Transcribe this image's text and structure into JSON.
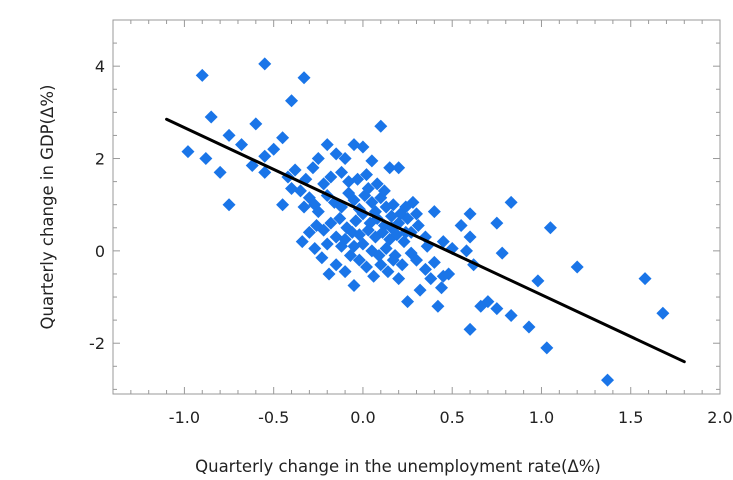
{
  "chart_data": {
    "type": "scatter",
    "xlabel": "Quarterly change in the unemployment rate(Δ%)",
    "ylabel": "Quarterly change in GDP(Δ%)",
    "xlim": [
      -1.4,
      2.0
    ],
    "ylim": [
      -3.1,
      5.0
    ],
    "x_ticks": [
      -1.0,
      -0.5,
      0.0,
      0.5,
      1.0,
      1.5,
      2.0
    ],
    "x_tick_labels": [
      "-1.0",
      "-0.5",
      "0.0",
      "0.5",
      "1.0",
      "1.5",
      "2.0"
    ],
    "y_ticks": [
      -2,
      0,
      2,
      4
    ],
    "y_tick_labels": [
      "-2",
      "0",
      "2",
      "4"
    ],
    "grid": false,
    "marker_color": "#1a75e8",
    "line_color": "#000000",
    "trend_line": {
      "x": [
        -1.1,
        1.8
      ],
      "y": [
        2.85,
        -2.4
      ]
    },
    "points": [
      [
        -0.9,
        3.8
      ],
      [
        -0.55,
        4.05
      ],
      [
        -0.33,
        3.75
      ],
      [
        -0.4,
        3.25
      ],
      [
        -0.85,
        2.9
      ],
      [
        -0.75,
        2.5
      ],
      [
        -0.6,
        2.75
      ],
      [
        -0.68,
        2.3
      ],
      [
        -0.98,
        2.15
      ],
      [
        -0.88,
        2.0
      ],
      [
        -0.8,
        1.7
      ],
      [
        -0.62,
        1.85
      ],
      [
        -0.55,
        2.05
      ],
      [
        -0.5,
        2.2
      ],
      [
        -0.45,
        2.45
      ],
      [
        -0.75,
        1.0
      ],
      [
        -0.55,
        1.7
      ],
      [
        -0.42,
        1.6
      ],
      [
        -0.38,
        1.75
      ],
      [
        -0.32,
        1.55
      ],
      [
        -0.28,
        1.8
      ],
      [
        -0.25,
        2.0
      ],
      [
        -0.2,
        2.3
      ],
      [
        -0.15,
        2.1
      ],
      [
        -0.1,
        2.0
      ],
      [
        -0.05,
        2.3
      ],
      [
        0.0,
        2.25
      ],
      [
        0.05,
        1.95
      ],
      [
        0.1,
        2.7
      ],
      [
        0.15,
        1.8
      ],
      [
        0.2,
        1.8
      ],
      [
        -0.22,
        1.45
      ],
      [
        -0.18,
        1.6
      ],
      [
        -0.12,
        1.7
      ],
      [
        -0.08,
        1.5
      ],
      [
        -0.03,
        1.55
      ],
      [
        0.02,
        1.65
      ],
      [
        0.08,
        1.45
      ],
      [
        -0.35,
        1.3
      ],
      [
        -0.3,
        1.15
      ],
      [
        -0.27,
        1.0
      ],
      [
        -0.25,
        0.85
      ],
      [
        -0.2,
        1.2
      ],
      [
        -0.16,
        1.05
      ],
      [
        -0.12,
        0.95
      ],
      [
        -0.08,
        1.25
      ],
      [
        -0.05,
        1.1
      ],
      [
        -0.02,
        0.9
      ],
      [
        0.01,
        1.2
      ],
      [
        0.05,
        1.05
      ],
      [
        0.1,
        1.15
      ],
      [
        0.13,
        0.95
      ],
      [
        0.17,
        1.0
      ],
      [
        0.21,
        0.8
      ],
      [
        0.24,
        0.95
      ],
      [
        0.28,
        1.05
      ],
      [
        0.3,
        0.8
      ],
      [
        0.25,
        0.7
      ],
      [
        0.2,
        0.6
      ],
      [
        0.16,
        0.75
      ],
      [
        0.12,
        0.55
      ],
      [
        0.08,
        0.7
      ],
      [
        0.04,
        0.6
      ],
      [
        0.0,
        0.8
      ],
      [
        -0.04,
        0.65
      ],
      [
        -0.09,
        0.5
      ],
      [
        -0.13,
        0.7
      ],
      [
        -0.18,
        0.6
      ],
      [
        -0.22,
        0.45
      ],
      [
        -0.26,
        0.55
      ],
      [
        -0.3,
        0.4
      ],
      [
        -0.34,
        0.2
      ],
      [
        -0.2,
        0.15
      ],
      [
        -0.15,
        0.3
      ],
      [
        -0.1,
        0.25
      ],
      [
        -0.06,
        0.4
      ],
      [
        -0.02,
        0.35
      ],
      [
        0.03,
        0.45
      ],
      [
        0.07,
        0.3
      ],
      [
        0.11,
        0.4
      ],
      [
        0.15,
        0.25
      ],
      [
        0.19,
        0.35
      ],
      [
        0.23,
        0.2
      ],
      [
        0.27,
        0.4
      ],
      [
        0.31,
        0.55
      ],
      [
        0.35,
        0.3
      ],
      [
        0.4,
        0.85
      ],
      [
        0.45,
        0.2
      ],
      [
        0.5,
        0.05
      ],
      [
        0.55,
        0.55
      ],
      [
        0.6,
        0.8
      ],
      [
        0.6,
        0.3
      ],
      [
        0.58,
        0.0
      ],
      [
        0.62,
        -0.3
      ],
      [
        0.48,
        -0.5
      ],
      [
        0.44,
        -0.8
      ],
      [
        0.42,
        -1.2
      ],
      [
        0.38,
        -0.6
      ],
      [
        0.35,
        -0.4
      ],
      [
        0.3,
        -0.2
      ],
      [
        0.27,
        -0.05
      ],
      [
        0.22,
        -0.3
      ],
      [
        0.18,
        -0.1
      ],
      [
        0.14,
        -0.45
      ],
      [
        0.1,
        -0.3
      ],
      [
        0.06,
        -0.55
      ],
      [
        0.02,
        -0.35
      ],
      [
        -0.02,
        -0.2
      ],
      [
        -0.05,
        -0.75
      ],
      [
        -0.1,
        -0.45
      ],
      [
        -0.15,
        -0.3
      ],
      [
        -0.19,
        -0.5
      ],
      [
        -0.23,
        -0.15
      ],
      [
        -0.27,
        0.05
      ],
      [
        -0.05,
        0.1
      ],
      [
        0.0,
        0.15
      ],
      [
        0.05,
        0.0
      ],
      [
        0.09,
        -0.1
      ],
      [
        0.13,
        0.05
      ],
      [
        0.17,
        -0.2
      ],
      [
        0.2,
        -0.6
      ],
      [
        0.25,
        -1.1
      ],
      [
        0.32,
        -0.85
      ],
      [
        0.75,
        0.6
      ],
      [
        0.83,
        1.05
      ],
      [
        0.78,
        -0.05
      ],
      [
        0.7,
        -1.1
      ],
      [
        0.66,
        -1.2
      ],
      [
        0.75,
        -1.25
      ],
      [
        0.6,
        -1.7
      ],
      [
        0.83,
        -1.4
      ],
      [
        0.93,
        -1.65
      ],
      [
        1.03,
        -2.1
      ],
      [
        0.98,
        -0.65
      ],
      [
        1.05,
        0.5
      ],
      [
        1.2,
        -0.35
      ],
      [
        1.37,
        -2.8
      ],
      [
        1.58,
        -0.6
      ],
      [
        1.68,
        -1.35
      ],
      [
        0.45,
        -0.55
      ],
      [
        0.4,
        -0.25
      ],
      [
        0.36,
        0.1
      ],
      [
        -0.45,
        1.0
      ],
      [
        -0.4,
        1.35
      ],
      [
        -0.33,
        0.95
      ],
      [
        -0.12,
        0.1
      ],
      [
        -0.07,
        -0.1
      ],
      [
        0.03,
        1.35
      ],
      [
        0.07,
        0.85
      ],
      [
        0.12,
        1.3
      ],
      [
        0.16,
        0.5
      ],
      [
        0.24,
        0.4
      ]
    ]
  }
}
